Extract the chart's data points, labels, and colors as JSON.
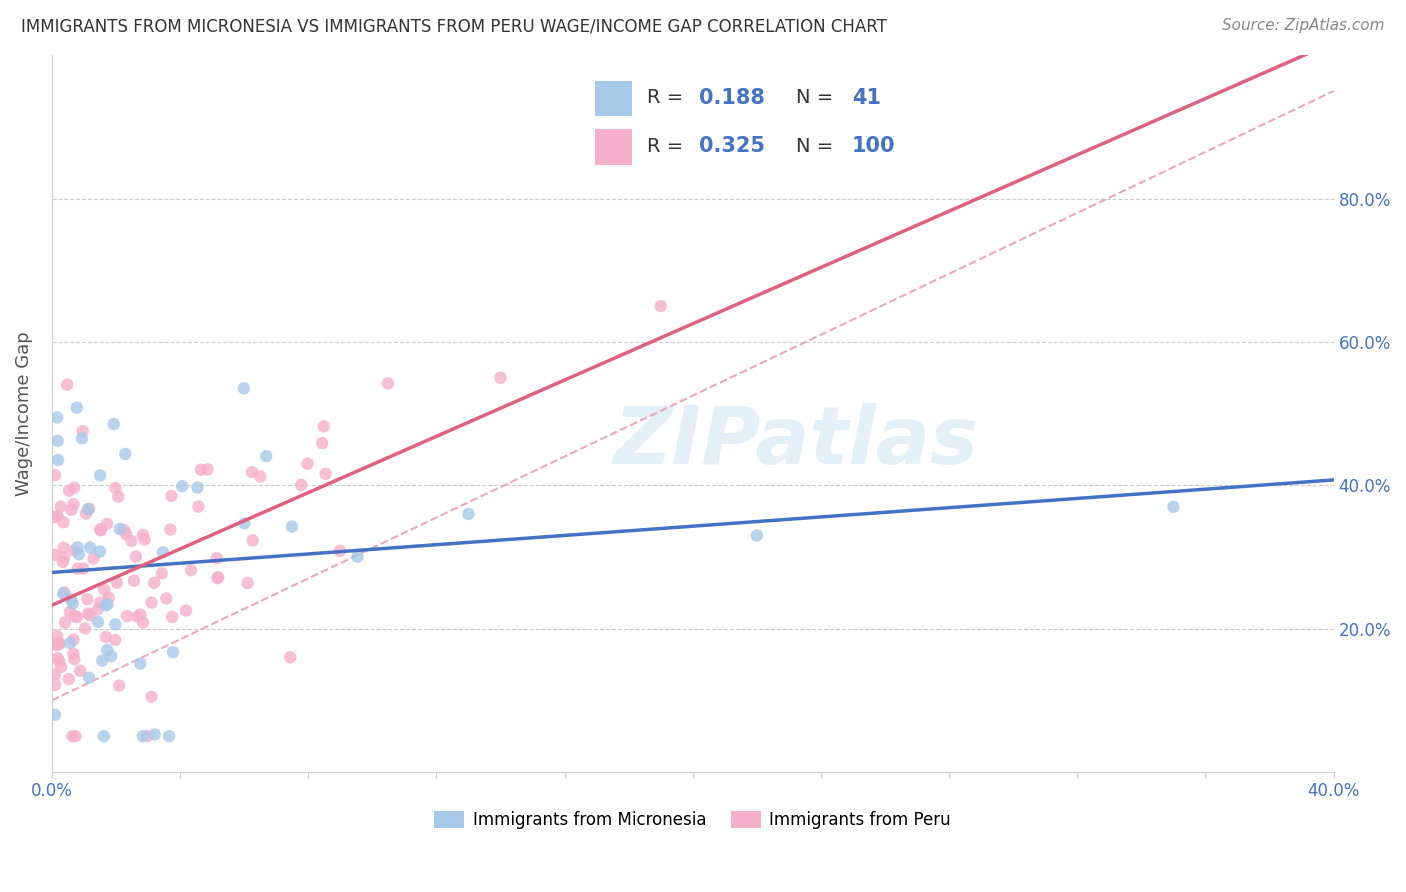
{
  "title": "IMMIGRANTS FROM MICRONESIA VS IMMIGRANTS FROM PERU WAGE/INCOME GAP CORRELATION CHART",
  "source": "Source: ZipAtlas.com",
  "ylabel": "Wage/Income Gap",
  "xlim": [
    0.0,
    0.4
  ],
  "ylim": [
    0.0,
    1.0
  ],
  "y_axis_min": 0.0,
  "y_axis_max": 1.0,
  "right_ytick_vals": [
    0.2,
    0.4,
    0.6,
    0.8
  ],
  "right_yticklabels": [
    "20.0%",
    "40.0%",
    "60.0%",
    "80.0%"
  ],
  "xticklabels_show": [
    "0.0%",
    "40.0%"
  ],
  "micronesia_R": 0.188,
  "micronesia_N": 41,
  "peru_R": 0.325,
  "peru_N": 100,
  "micronesia_dot_color": "#a8c8e8",
  "peru_dot_color": "#f4b0c8",
  "trend_micronesia_color": "#4472c4",
  "trend_peru_color": "#e06080",
  "trend_ref_color": "#e8a0b0",
  "background_color": "#ffffff",
  "watermark": "ZIPatlas",
  "legend_label_micronesia": "Immigrants from Micronesia",
  "legend_label_peru": "Immigrants from Peru",
  "legend_R1": "0.188",
  "legend_N1": "41",
  "legend_R2": "0.325",
  "legend_N2": "100",
  "micronesia_legend_color": "#a8c8e8",
  "peru_legend_color": "#f4b0c8",
  "legend_text_color": "#4472c4",
  "grid_color": "#cccccc",
  "title_color": "#333333",
  "source_color": "#888888",
  "ylabel_color": "#555555"
}
